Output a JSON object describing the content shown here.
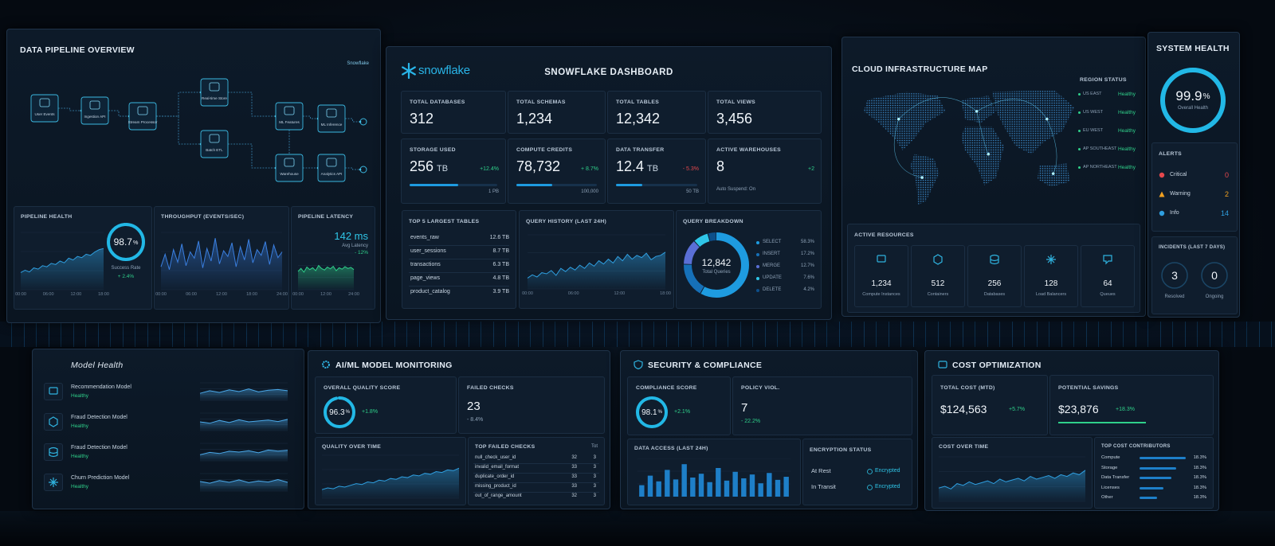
{
  "pipeline": {
    "title": "DATA PIPELINE OVERVIEW",
    "brand": "Snowflake",
    "nodes": [
      "User Events",
      "Ingestion API",
      "Stream Processor",
      "Real-time Store",
      "Batch ETL",
      "ML Features",
      "ML Inference",
      "Warehouse",
      "Analytics API"
    ],
    "health": {
      "title": "PIPELINE HEALTH",
      "gauge": {
        "value": 98.7,
        "unit": "%"
      },
      "label": "Success Rate",
      "delta": "+ 2.4%",
      "ylim": [
        0,
        100
      ],
      "values": [
        30,
        34,
        31,
        38,
        36,
        42,
        40,
        46,
        44,
        50,
        47,
        55,
        52,
        58,
        56,
        62,
        60,
        66,
        70,
        72
      ],
      "xticks": [
        "00:00",
        "06:00",
        "12:00",
        "18:00"
      ]
    },
    "throughput": {
      "title": "THROUGHPUT (EVENTS/SEC)",
      "ylim": [
        0,
        100
      ],
      "values": [
        40,
        62,
        35,
        70,
        48,
        80,
        42,
        66,
        55,
        85,
        38,
        72,
        50,
        90,
        45,
        68,
        58,
        82,
        40,
        75,
        52,
        88,
        47,
        70,
        60,
        84,
        44,
        78,
        56,
        66
      ],
      "xticks": [
        "00:00",
        "06:00",
        "12:00",
        "18:00",
        "24:00"
      ]
    },
    "latency": {
      "title": "PIPELINE LATENCY",
      "value": "142 ms",
      "label": "Avg Latency",
      "delta": "- 12%",
      "ylim": [
        0,
        100
      ],
      "values": [
        50,
        58,
        48,
        62,
        55,
        60,
        52,
        66,
        58,
        54,
        62,
        57,
        64,
        52,
        60,
        56,
        63,
        58,
        61,
        55
      ],
      "xticks": [
        "00:00",
        "12:00",
        "24:00"
      ]
    }
  },
  "snowflake": {
    "brand": "snowflake",
    "title": "SNOWFLAKE DASHBOARD",
    "counts": [
      {
        "label": "TOTAL DATABASES",
        "value": "312"
      },
      {
        "label": "TOTAL SCHEMAS",
        "value": "1,234"
      },
      {
        "label": "TOTAL TABLES",
        "value": "12,342"
      },
      {
        "label": "TOTAL VIEWS",
        "value": "3,456"
      }
    ],
    "usage": [
      {
        "label": "STORAGE USED",
        "value": "256",
        "unit": "TB",
        "delta": "+12.4%",
        "max": "1 PB"
      },
      {
        "label": "COMPUTE CREDITS",
        "value": "78,732",
        "delta": "+ 8.7%",
        "max": "100,000"
      },
      {
        "label": "DATA TRANSFER",
        "value": "12.4",
        "unit": "TB",
        "delta": "- 5.3%",
        "max": "50 TB"
      },
      {
        "label": "ACTIVE WAREHOUSES",
        "value": "8",
        "delta": "+2",
        "note": "Auto Suspend:  On"
      }
    ],
    "tables": {
      "title": "TOP 5 LARGEST TABLES",
      "rows": [
        [
          "events_raw",
          "12.6 TB"
        ],
        [
          "user_sessions",
          "8.7 TB"
        ],
        [
          "transactions",
          "6.3 TB"
        ],
        [
          "page_views",
          "4.8 TB"
        ],
        [
          "product_catalog",
          "3.9 TB"
        ]
      ]
    },
    "history": {
      "title": "QUERY HISTORY (LAST 24H)",
      "ylim": [
        0,
        100
      ],
      "values": [
        20,
        26,
        22,
        30,
        28,
        34,
        25,
        38,
        32,
        40,
        35,
        44,
        38,
        48,
        42,
        52,
        46,
        55,
        48,
        60,
        52,
        64,
        55,
        62,
        58,
        66,
        54,
        60,
        62,
        68
      ],
      "xticks": [
        "00:00",
        "06:00",
        "12:00",
        "18:00"
      ]
    },
    "breakdown": {
      "title": "QUERY BREAKDOWN",
      "total": "12,842",
      "total_label": "Total Queries",
      "names": [
        "SELECT",
        "INSERT",
        "MERGE",
        "UPDATE",
        "DELETE"
      ],
      "values": [
        58.3,
        17.2,
        12.7,
        7.6,
        4.2
      ],
      "value_labels": [
        "58.3%",
        "17.2%",
        "12.7%",
        "7.6%",
        "4.2%"
      ],
      "colors": [
        "#1e9be0",
        "#1670b8",
        "#5a6fd6",
        "#2fc6e8",
        "#0d4f8a"
      ]
    }
  },
  "cloud": {
    "title": "CLOUD INFRASTRUCTURE MAP",
    "region_title": "REGION STATUS",
    "regions": [
      {
        "name": "US EAST",
        "status": "Healthy"
      },
      {
        "name": "US WEST",
        "status": "Healthy"
      },
      {
        "name": "EU WEST",
        "status": "Healthy"
      },
      {
        "name": "AP SOUTHEAST",
        "status": "Healthy"
      },
      {
        "name": "AP NORTHEAST",
        "status": "Healthy"
      }
    ],
    "resources_title": "ACTIVE RESOURCES",
    "resources": [
      {
        "value": "1,234",
        "label": "Compute Instances"
      },
      {
        "value": "512",
        "label": "Containers"
      },
      {
        "value": "256",
        "label": "Databases"
      },
      {
        "value": "128",
        "label": "Load Balancers"
      },
      {
        "value": "64",
        "label": "Queues"
      }
    ]
  },
  "system": {
    "title": "SYSTEM HEALTH",
    "gauge": {
      "value": 99.9,
      "unit": "%"
    },
    "gauge_label": "Overall Health",
    "alerts_title": "ALERTS",
    "alerts": [
      {
        "name": "Critical",
        "count": "0"
      },
      {
        "name": "Warning",
        "count": "2"
      },
      {
        "name": "Info",
        "count": "14"
      }
    ],
    "incidents_title": "INCIDENTS (LAST 7 DAYS)",
    "incidents": [
      {
        "value": "3",
        "label": "Resolved"
      },
      {
        "value": "0",
        "label": "Ongoing"
      }
    ]
  },
  "models": {
    "title": "Model Health",
    "items": [
      {
        "name": "Recommendation Model",
        "status": "Healthy",
        "ylim": [
          0,
          100
        ],
        "values": [
          40,
          55,
          45,
          60,
          50,
          65,
          48,
          58,
          62,
          55
        ]
      },
      {
        "name": "Fraud Detection Model",
        "status": "Healthy",
        "ylim": [
          0,
          100
        ],
        "values": [
          50,
          42,
          58,
          46,
          62,
          50,
          55,
          60,
          52,
          64
        ]
      },
      {
        "name": "Fraud Detection Model",
        "status": "Healthy",
        "ylim": [
          0,
          100
        ],
        "values": [
          35,
          48,
          42,
          55,
          50,
          58,
          46,
          62,
          56,
          60
        ]
      },
      {
        "name": "Churn Prediction Model",
        "status": "Healthy",
        "ylim": [
          0,
          100
        ],
        "values": [
          55,
          45,
          60,
          50,
          64,
          48,
          58,
          52,
          66,
          50
        ]
      }
    ]
  },
  "aiml": {
    "title": "AI/ML MODEL MONITORING",
    "quality": {
      "label": "OVERALL QUALITY SCORE",
      "gauge": {
        "value": 96.3,
        "unit": "%"
      },
      "delta": "+1.8%"
    },
    "failed": {
      "label": "FAILED CHECKS",
      "value": "23",
      "delta": "- 8.4%"
    },
    "trend": {
      "title": "QUALITY OVER TIME",
      "ylim": [
        0,
        100
      ],
      "values": [
        20,
        24,
        22,
        28,
        26,
        30,
        34,
        32,
        38,
        36,
        42,
        40,
        46,
        44,
        50,
        48,
        54,
        52,
        58,
        56,
        62,
        60,
        66,
        64,
        70
      ]
    },
    "checks": {
      "title": "TOP FAILED CHECKS",
      "column": "Tot",
      "rows": [
        [
          "null_check_user_id",
          "32",
          "3"
        ],
        [
          "invalid_email_format",
          "33",
          "3"
        ],
        [
          "duplicate_order_id",
          "33",
          "3"
        ],
        [
          "missing_product_id",
          "33",
          "3"
        ],
        [
          "out_of_range_amount",
          "32",
          "3"
        ]
      ]
    }
  },
  "security": {
    "title": "SECURITY & COMPLIANCE",
    "compliance": {
      "label": "COMPLIANCE SCORE",
      "gauge": {
        "value": 98.1,
        "unit": "%"
      },
      "delta": "+2.1%"
    },
    "policy": {
      "label": "POLICY VIOL.",
      "value": "7",
      "delta": "- 22.2%"
    },
    "access": {
      "title": "DATA ACCESS (LAST 24H)",
      "ylim": [
        0,
        100
      ],
      "values": [
        30,
        55,
        40,
        70,
        45,
        85,
        50,
        60,
        38,
        75,
        42,
        65,
        48,
        58,
        35,
        62,
        44,
        52
      ]
    },
    "encryption": {
      "title": "ENCRYPTION STATUS",
      "rows": [
        [
          "At Rest",
          "Encrypted"
        ],
        [
          "In Transit",
          "Encrypted"
        ]
      ]
    }
  },
  "cost": {
    "title": "COST OPTIMIZATION",
    "total": {
      "label": "TOTAL COST (MTD)",
      "value": "$124,563",
      "delta": "+5.7%"
    },
    "savings": {
      "label": "POTENTIAL SAVINGS",
      "value": "$23,876",
      "delta": "+18.3%"
    },
    "trend": {
      "title": "COST OVER TIME",
      "ylim": [
        0,
        100
      ],
      "values": [
        30,
        34,
        28,
        40,
        36,
        44,
        38,
        42,
        46,
        40,
        50,
        44,
        48,
        52,
        46,
        56,
        50,
        54,
        58,
        52,
        60,
        56,
        64,
        60,
        70
      ]
    },
    "contributors": {
      "title": "TOP COST CONTRIBUTORS",
      "rows": [
        [
          "Compute",
          "18.3%"
        ],
        [
          "Storage",
          "18.3%"
        ],
        [
          "Data Transfer",
          "18.3%"
        ],
        [
          "Licenses",
          "18.3%"
        ],
        [
          "Other",
          "18.3%"
        ]
      ]
    }
  }
}
